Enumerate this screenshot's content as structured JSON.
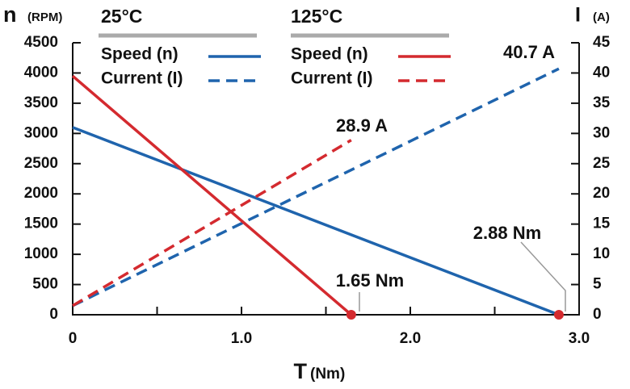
{
  "chart_data": {
    "type": "line",
    "x_label": "T",
    "x_unit": "(Nm)",
    "y_label": "n",
    "y_unit": "(RPM)",
    "y2_label": "I",
    "y2_unit": "(A)",
    "xlim": [
      0,
      3
    ],
    "xticks": [
      0,
      {
        "value": 1,
        "label": "1.0"
      },
      {
        "value": 2,
        "label": "2.0"
      },
      {
        "value": 3,
        "label": "3.0"
      }
    ],
    "xminorticks": [
      0.5,
      1.5,
      2.5
    ],
    "ylim": [
      0,
      4500
    ],
    "yticks": [
      0,
      500,
      1000,
      1500,
      2000,
      2500,
      3000,
      3500,
      4000,
      4500
    ],
    "y2lim": [
      0,
      45
    ],
    "y2ticks": [
      0,
      5,
      10,
      15,
      20,
      25,
      30,
      35,
      40,
      45
    ],
    "series": [
      {
        "name": "Speed (n)",
        "group": "25°C",
        "color": "#1f64ad",
        "dashed": false,
        "axis": "y",
        "x": [
          0,
          2.88
        ],
        "values": [
          3100,
          0
        ]
      },
      {
        "name": "Current (I)",
        "group": "25°C",
        "color": "#1f64ad",
        "dashed": true,
        "axis": "y2",
        "x": [
          0,
          2.88
        ],
        "values": [
          1.5,
          40.7
        ]
      },
      {
        "name": "Speed (n)",
        "group": "125°C",
        "color": "#d42a2f",
        "dashed": false,
        "axis": "y",
        "x": [
          0,
          1.65
        ],
        "values": [
          3950,
          0
        ]
      },
      {
        "name": "Current (I)",
        "group": "125°C",
        "color": "#d42a2f",
        "dashed": true,
        "axis": "y2",
        "x": [
          0,
          1.65
        ],
        "values": [
          1.5,
          28.9
        ]
      }
    ],
    "annotations": [
      {
        "text": "40.7 A",
        "color": "#1f64ad"
      },
      {
        "text": "28.9 A",
        "color": "#d42a2f"
      },
      {
        "text": "2.88 Nm",
        "color": "#1f64ad"
      },
      {
        "text": "1.65 Nm",
        "color": "#d42a2f"
      }
    ]
  }
}
